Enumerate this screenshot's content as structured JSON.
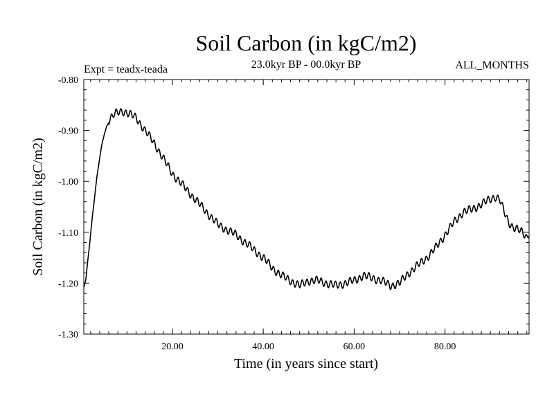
{
  "chart_data": {
    "type": "line",
    "title": "Soil Carbon (in kgC/m2)",
    "subtitle": "23.0kyr BP - 00.0kyr BP",
    "experiment_label": "Expt = teadx-teada",
    "period_label": "ALL_MONTHS",
    "xlabel": "Time (in years since start)",
    "ylabel": "Soil Carbon (in kgC/m2)",
    "xlim": [
      0.5,
      98.5
    ],
    "ylim": [
      -1.3,
      -0.8
    ],
    "x_ticks": [
      20,
      40,
      60,
      80
    ],
    "x_tick_labels": [
      "20.00",
      "40.00",
      "60.00",
      "80.00"
    ],
    "y_ticks": [
      -0.8,
      -0.9,
      -1.0,
      -1.1,
      -1.2,
      -1.3
    ],
    "y_tick_labels": [
      "-0.80",
      "-0.90",
      "-1.00",
      "-1.10",
      "-1.20",
      "-1.30"
    ],
    "grid": false,
    "series": [
      {
        "name": "Soil Carbon",
        "color": "#000000",
        "x": [
          0.5,
          1,
          2,
          3,
          4,
          5,
          6,
          7,
          8,
          9,
          10,
          12,
          14,
          16,
          18,
          20,
          22,
          24,
          26,
          28,
          30,
          32,
          34,
          36,
          38,
          40,
          42,
          44,
          46,
          48,
          50,
          52,
          54,
          56,
          58,
          60,
          62,
          64,
          66,
          68,
          70,
          72,
          74,
          76,
          78,
          80,
          82,
          84,
          86,
          88,
          90,
          91,
          92,
          93,
          94,
          95,
          96,
          97,
          98,
          98.5
        ],
        "y": [
          -1.21,
          -1.19,
          -1.1,
          -1.02,
          -0.955,
          -0.905,
          -0.88,
          -0.87,
          -0.865,
          -0.862,
          -0.865,
          -0.875,
          -0.9,
          -0.925,
          -0.955,
          -0.985,
          -1.005,
          -1.025,
          -1.045,
          -1.065,
          -1.085,
          -1.095,
          -1.105,
          -1.12,
          -1.135,
          -1.15,
          -1.17,
          -1.185,
          -1.195,
          -1.205,
          -1.195,
          -1.195,
          -1.2,
          -1.205,
          -1.2,
          -1.195,
          -1.185,
          -1.19,
          -1.195,
          -1.205,
          -1.2,
          -1.18,
          -1.165,
          -1.15,
          -1.13,
          -1.105,
          -1.08,
          -1.06,
          -1.055,
          -1.045,
          -1.035,
          -1.03,
          -1.035,
          -1.06,
          -1.08,
          -1.09,
          -1.095,
          -1.1,
          -1.11,
          -1.1
        ]
      }
    ]
  }
}
